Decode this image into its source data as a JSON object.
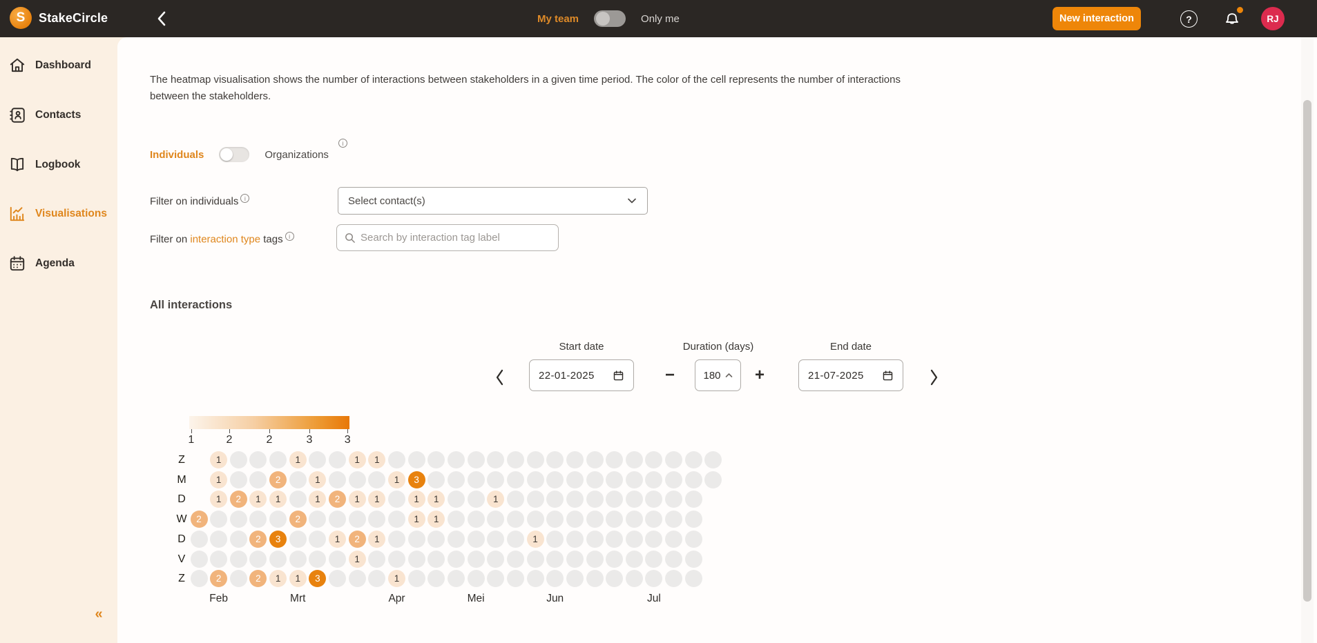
{
  "topbar": {
    "brand": "StakeCircle",
    "logo_letter": "S",
    "team_toggle": {
      "left_label": "My team",
      "right_label": "Only me",
      "state": "left"
    },
    "new_interaction_label": "New interaction",
    "help_label": "?",
    "avatar_initials": "RJ"
  },
  "sidebar": {
    "items": [
      {
        "label": "Dashboard",
        "icon": "home",
        "active": false
      },
      {
        "label": "Contacts",
        "icon": "contact-card",
        "active": false
      },
      {
        "label": "Logbook",
        "icon": "book",
        "active": false
      },
      {
        "label": "Visualisations",
        "icon": "bar-chart",
        "active": true
      },
      {
        "label": "Agenda",
        "icon": "calendar",
        "active": false
      }
    ],
    "collapse_icon": "«"
  },
  "main": {
    "description": "The heatmap visualisation shows the number of interactions between stakeholders in a given time period. The color of the cell represents the number of interactions between the stakeholders.",
    "entity_toggle": {
      "left_label": "Individuals",
      "right_label": "Organizations",
      "state": "left"
    },
    "filters": {
      "individuals_label": "Filter on individuals",
      "contacts_value": "Select contact(s)",
      "tags_label_prefix": "Filter on ",
      "tags_label_link": "interaction type",
      "tags_label_suffix": " tags",
      "tags_placeholder": "Search by interaction tag label"
    },
    "section_title": "All interactions",
    "date_controls": {
      "start_label": "Start date",
      "start_value": "22-01-2025",
      "duration_label": "Duration (days)",
      "duration_value": "180",
      "end_label": "End date",
      "end_value": "21-07-2025"
    }
  },
  "chart_data": {
    "type": "heatmap",
    "title": "All interactions",
    "description": "Calendar heatmap of interaction counts per day, 22-01-2025 to 21-07-2025, weeks as columns, weekdays (Dutch) as rows",
    "day_labels": [
      "Z",
      "M",
      "D",
      "W",
      "D",
      "V",
      "Z"
    ],
    "month_labels": [
      {
        "label": "Feb",
        "col": 2
      },
      {
        "label": "Mrt",
        "col": 6
      },
      {
        "label": "Apr",
        "col": 11
      },
      {
        "label": "Mei",
        "col": 15
      },
      {
        "label": "Jun",
        "col": 19
      },
      {
        "label": "Jul",
        "col": 24
      }
    ],
    "columns": 27,
    "legend_ticks": [
      "1",
      "2",
      "2",
      "3",
      "3"
    ],
    "legend_range": [
      1,
      3
    ],
    "grid": [
      [
        null,
        1,
        0,
        0,
        0,
        1,
        0,
        0,
        1,
        1,
        0,
        0,
        0,
        0,
        0,
        0,
        0,
        0,
        0,
        0,
        0,
        0,
        0,
        0,
        0,
        0,
        0
      ],
      [
        null,
        1,
        0,
        0,
        2,
        0,
        1,
        0,
        0,
        0,
        1,
        3,
        0,
        0,
        0,
        0,
        0,
        0,
        0,
        0,
        0,
        0,
        0,
        0,
        0,
        0,
        0
      ],
      [
        null,
        1,
        2,
        1,
        1,
        0,
        1,
        2,
        1,
        1,
        0,
        1,
        1,
        0,
        0,
        1,
        0,
        0,
        0,
        0,
        0,
        0,
        0,
        0,
        0,
        0,
        null
      ],
      [
        2,
        0,
        0,
        0,
        0,
        2,
        0,
        0,
        0,
        0,
        0,
        1,
        1,
        0,
        0,
        0,
        0,
        0,
        0,
        0,
        0,
        0,
        0,
        0,
        0,
        0,
        null
      ],
      [
        0,
        0,
        0,
        2,
        3,
        0,
        0,
        1,
        2,
        1,
        0,
        0,
        0,
        0,
        0,
        0,
        0,
        1,
        0,
        0,
        0,
        0,
        0,
        0,
        0,
        0,
        null
      ],
      [
        0,
        0,
        0,
        0,
        0,
        0,
        0,
        0,
        1,
        0,
        0,
        0,
        0,
        0,
        0,
        0,
        0,
        0,
        0,
        0,
        0,
        0,
        0,
        0,
        0,
        0,
        null
      ],
      [
        0,
        2,
        0,
        2,
        1,
        1,
        3,
        0,
        0,
        0,
        1,
        0,
        0,
        0,
        0,
        0,
        0,
        0,
        0,
        0,
        0,
        0,
        0,
        0,
        0,
        0,
        null
      ]
    ],
    "colors": {
      "empty": "#EBEAE9",
      "value_1": "#F9E4D0",
      "value_2": "#F1B47C",
      "value_3": "#E8820E",
      "text_light_cell": "#3F3A35",
      "text_dark_cell": "#FFFFFF"
    }
  },
  "theme": {
    "accent_orange": "#E8820E",
    "topbar_bg": "#2B2724",
    "sidebar_bg": "#FBF0E3",
    "avatar_red": "#DC2B4E"
  }
}
